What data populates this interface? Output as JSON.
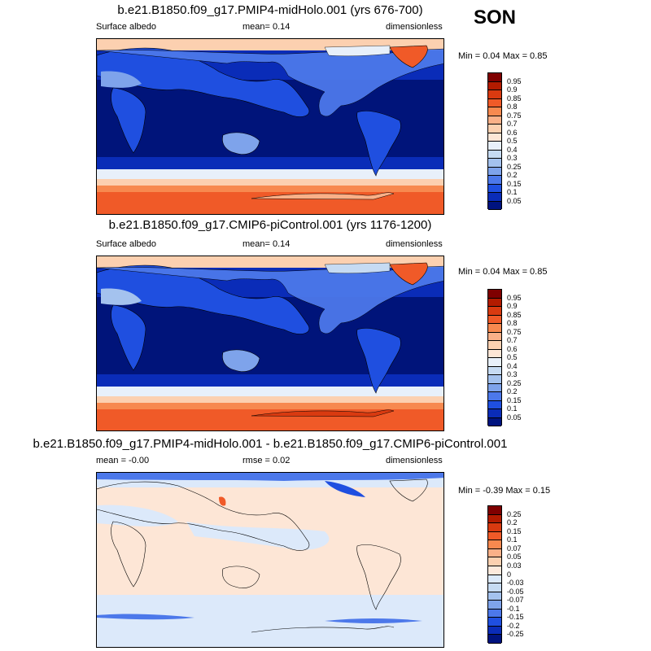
{
  "season": "SON",
  "panels": [
    {
      "title": "b.e21.B1850.f09_g17.PMIP4-midHolo.001 (yrs 676-700)",
      "left_label": "Surface albedo",
      "center_label": "mean=   0.14",
      "right_label": "dimensionless",
      "minmax": "Min =   0.04 Max =   0.85",
      "colorbar": {
        "ticks": [
          "0.95",
          "0.9",
          "0.85",
          "0.8",
          "0.75",
          "0.7",
          "0.6",
          "0.5",
          "0.4",
          "0.3",
          "0.25",
          "0.2",
          "0.15",
          "0.1",
          "0.05"
        ],
        "colors": [
          "#7f0000",
          "#b31b00",
          "#d93a10",
          "#f05a28",
          "#f7894f",
          "#fab088",
          "#fcd0b0",
          "#fde6d6",
          "#e8f0fa",
          "#c6dbf3",
          "#a4c2ee",
          "#7ea3eb",
          "#4c78ea",
          "#1f4fe0",
          "#0a2cb8",
          "#00137f"
        ]
      }
    },
    {
      "title": "b.e21.B1850.f09_g17.CMIP6-piControl.001 (yrs 1176-1200)",
      "left_label": "Surface albedo",
      "center_label": "mean=   0.14",
      "right_label": "dimensionless",
      "minmax": "Min =   0.04 Max =   0.85",
      "colorbar": {
        "ticks": [
          "0.95",
          "0.9",
          "0.85",
          "0.8",
          "0.75",
          "0.7",
          "0.6",
          "0.5",
          "0.4",
          "0.3",
          "0.25",
          "0.2",
          "0.15",
          "0.1",
          "0.05"
        ],
        "colors": [
          "#7f0000",
          "#b31b00",
          "#d93a10",
          "#f05a28",
          "#f7894f",
          "#fab088",
          "#fcd0b0",
          "#fde6d6",
          "#e8f0fa",
          "#c6dbf3",
          "#a4c2ee",
          "#7ea3eb",
          "#4c78ea",
          "#1f4fe0",
          "#0a2cb8",
          "#00137f"
        ]
      }
    },
    {
      "title": "b.e21.B1850.f09_g17.PMIP4-midHolo.001 - b.e21.B1850.f09_g17.CMIP6-piControl.001",
      "left_label": "mean =  -0.00",
      "center_label": "rmse =   0.02",
      "right_label": "dimensionless",
      "minmax": "Min =  -0.39 Max =   0.15",
      "colorbar": {
        "ticks": [
          "0.25",
          "0.2",
          "0.15",
          "0.1",
          "0.07",
          "0.05",
          "0.03",
          "0",
          "-0.03",
          "-0.05",
          "-0.07",
          "-0.1",
          "-0.15",
          "-0.2",
          "-0.25"
        ],
        "colors": [
          "#7f0000",
          "#b31b00",
          "#d93a10",
          "#f05a28",
          "#f7894f",
          "#fab088",
          "#fcd0b0",
          "#fde9dc",
          "#dce9fa",
          "#c6dbf3",
          "#a4c2ee",
          "#7ea3eb",
          "#4c78ea",
          "#1f4fe0",
          "#0a2cb8",
          "#00137f"
        ]
      }
    }
  ],
  "colors": {
    "deep_ocean": "#00147a",
    "ocean_mid": "#0a2cb8",
    "land_blue": "#1f4fe0",
    "desert": "#7ea3eb",
    "ice_red": "#f05a28",
    "ice_light": "#fcd0b0",
    "diff_pos": "#fde6d6",
    "diff_neg": "#dce9fa"
  }
}
